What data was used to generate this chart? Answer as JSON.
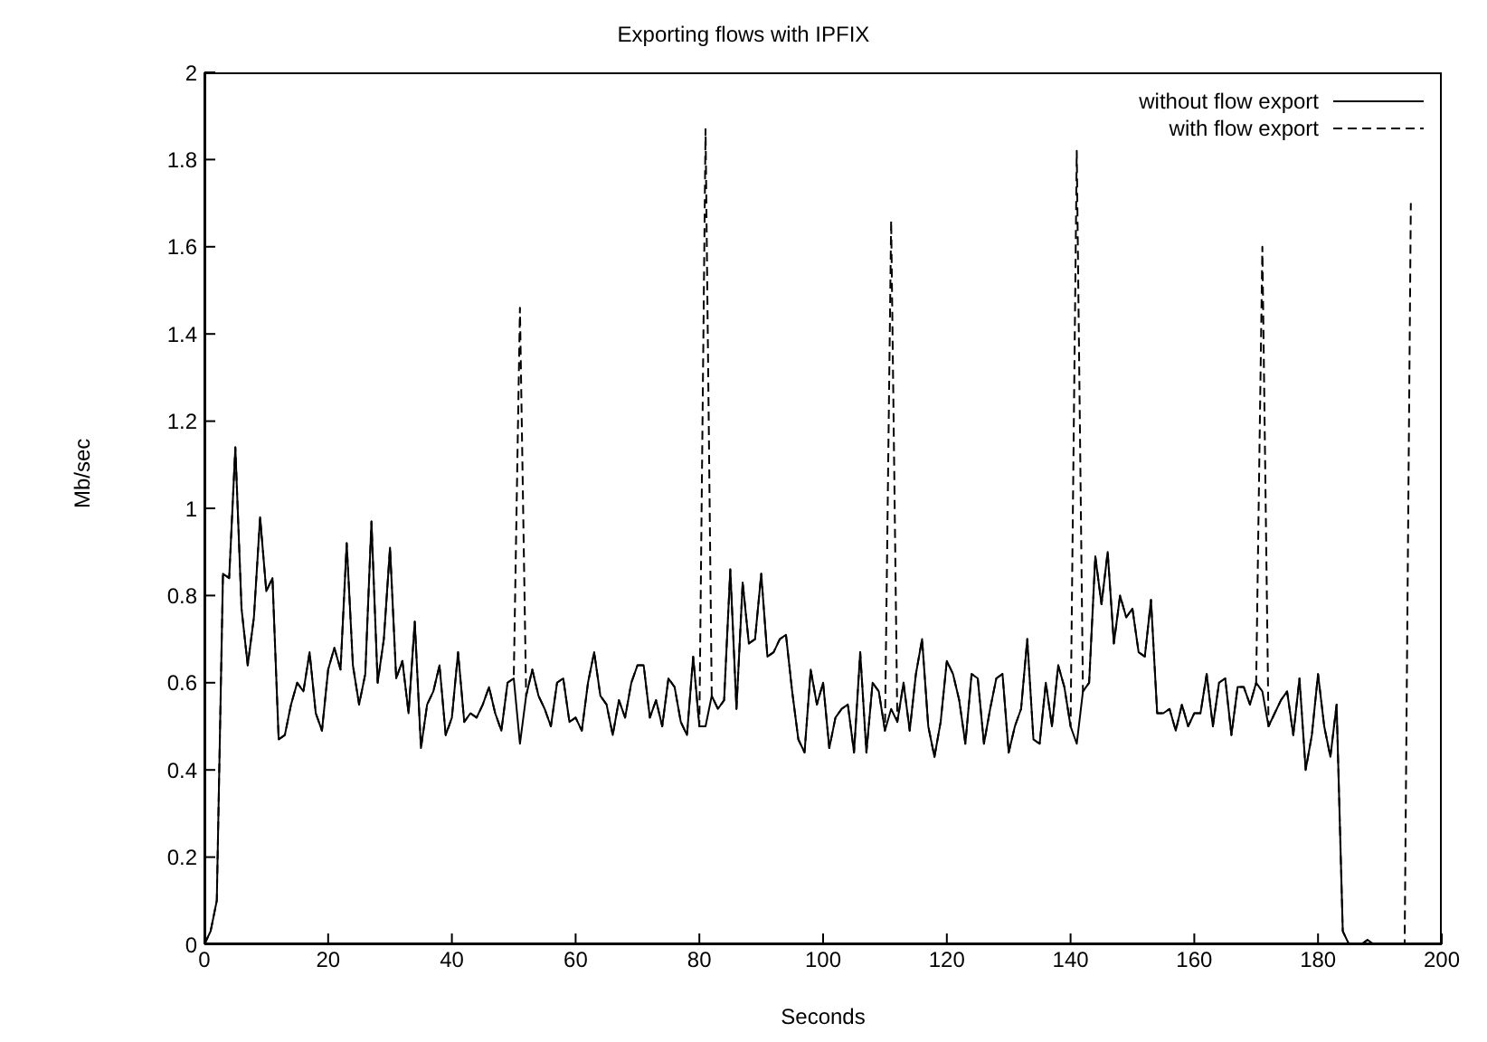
{
  "chart_data": {
    "type": "line",
    "title": "Exporting flows with IPFIX",
    "xlabel": "Seconds",
    "ylabel": "Mb/sec",
    "x": [
      0,
      1,
      2,
      3,
      4,
      5,
      6,
      7,
      8,
      9,
      10,
      11,
      12,
      13,
      14,
      15,
      16,
      17,
      18,
      19,
      20,
      21,
      22,
      23,
      24,
      25,
      26,
      27,
      28,
      29,
      30,
      31,
      32,
      33,
      34,
      35,
      36,
      37,
      38,
      39,
      40,
      41,
      42,
      43,
      44,
      45,
      46,
      47,
      48,
      49,
      50,
      51,
      52,
      53,
      54,
      55,
      56,
      57,
      58,
      59,
      60,
      61,
      62,
      63,
      64,
      65,
      66,
      67,
      68,
      69,
      70,
      71,
      72,
      73,
      74,
      75,
      76,
      77,
      78,
      79,
      80,
      81,
      82,
      83,
      84,
      85,
      86,
      87,
      88,
      89,
      90,
      91,
      92,
      93,
      94,
      95,
      96,
      97,
      98,
      99,
      100,
      101,
      102,
      103,
      104,
      105,
      106,
      107,
      108,
      109,
      110,
      111,
      112,
      113,
      114,
      115,
      116,
      117,
      118,
      119,
      120,
      121,
      122,
      123,
      124,
      125,
      126,
      127,
      128,
      129,
      130,
      131,
      132,
      133,
      134,
      135,
      136,
      137,
      138,
      139,
      140,
      141,
      142,
      143,
      144,
      145,
      146,
      147,
      148,
      149,
      150,
      151,
      152,
      153,
      154,
      155,
      156,
      157,
      158,
      159,
      160,
      161,
      162,
      163,
      164,
      165,
      166,
      167,
      168,
      169,
      170,
      171,
      172,
      173,
      174,
      175,
      176,
      177,
      178,
      179,
      180,
      181,
      182,
      183,
      184,
      185,
      186,
      187,
      188,
      189,
      190,
      191,
      192,
      193,
      194,
      195
    ],
    "series": [
      {
        "name": "without flow export",
        "color": "#000000",
        "line_style": "solid",
        "values": [
          0.0,
          0.03,
          0.1,
          0.85,
          0.84,
          1.14,
          0.77,
          0.64,
          0.75,
          0.98,
          0.81,
          0.84,
          0.47,
          0.48,
          0.55,
          0.6,
          0.58,
          0.67,
          0.53,
          0.49,
          0.63,
          0.68,
          0.63,
          0.92,
          0.64,
          0.55,
          0.62,
          0.97,
          0.6,
          0.7,
          0.91,
          0.61,
          0.65,
          0.53,
          0.74,
          0.45,
          0.55,
          0.58,
          0.64,
          0.48,
          0.52,
          0.67,
          0.51,
          0.53,
          0.52,
          0.55,
          0.59,
          0.53,
          0.49,
          0.6,
          0.61,
          0.46,
          0.57,
          0.63,
          0.57,
          0.54,
          0.5,
          0.6,
          0.61,
          0.51,
          0.52,
          0.49,
          0.6,
          0.67,
          0.57,
          0.55,
          0.48,
          0.56,
          0.52,
          0.6,
          0.64,
          0.64,
          0.52,
          0.56,
          0.5,
          0.61,
          0.59,
          0.51,
          0.48,
          0.66,
          0.5,
          0.5,
          0.57,
          0.54,
          0.56,
          0.86,
          0.54,
          0.83,
          0.69,
          0.7,
          0.85,
          0.66,
          0.67,
          0.7,
          0.71,
          0.58,
          0.47,
          0.44,
          0.63,
          0.55,
          0.6,
          0.45,
          0.52,
          0.54,
          0.55,
          0.44,
          0.67,
          0.44,
          0.6,
          0.58,
          0.49,
          0.54,
          0.51,
          0.6,
          0.49,
          0.62,
          0.7,
          0.5,
          0.43,
          0.51,
          0.65,
          0.62,
          0.56,
          0.46,
          0.62,
          0.61,
          0.46,
          0.54,
          0.61,
          0.62,
          0.44,
          0.5,
          0.54,
          0.7,
          0.47,
          0.46,
          0.6,
          0.5,
          0.64,
          0.59,
          0.5,
          0.46,
          0.58,
          0.6,
          0.89,
          0.78,
          0.9,
          0.69,
          0.8,
          0.75,
          0.77,
          0.67,
          0.66,
          0.79,
          0.53,
          0.53,
          0.54,
          0.49,
          0.55,
          0.5,
          0.53,
          0.53,
          0.62,
          0.5,
          0.6,
          0.61,
          0.48,
          0.59,
          0.59,
          0.55,
          0.6,
          0.58,
          0.5,
          0.53,
          0.56,
          0.58,
          0.48,
          0.61,
          0.4,
          0.48,
          0.62,
          0.5,
          0.43,
          0.55,
          0.03,
          0.0,
          0.0,
          0.0,
          0.01,
          0.0,
          0.0,
          0.0,
          0.0,
          0.0,
          0.0,
          null
        ]
      },
      {
        "name": "with flow export",
        "color": "#000000",
        "line_style": "dashed",
        "values": [
          0.0,
          0.03,
          0.1,
          0.85,
          0.84,
          1.14,
          0.77,
          0.64,
          0.75,
          0.98,
          0.81,
          0.84,
          0.47,
          0.48,
          0.55,
          0.6,
          0.58,
          0.67,
          0.53,
          0.49,
          0.63,
          0.68,
          0.63,
          0.92,
          0.64,
          0.55,
          0.62,
          0.97,
          0.6,
          0.7,
          0.91,
          0.61,
          0.65,
          0.53,
          0.74,
          0.45,
          0.55,
          0.58,
          0.64,
          0.48,
          0.52,
          0.67,
          0.51,
          0.53,
          0.52,
          0.55,
          0.59,
          0.53,
          0.49,
          0.6,
          0.61,
          1.46,
          0.57,
          0.63,
          0.57,
          0.54,
          0.5,
          0.6,
          0.61,
          0.51,
          0.52,
          0.49,
          0.6,
          0.67,
          0.57,
          0.55,
          0.48,
          0.56,
          0.52,
          0.6,
          0.64,
          0.64,
          0.52,
          0.56,
          0.5,
          0.61,
          0.59,
          0.51,
          0.48,
          0.66,
          0.5,
          1.87,
          0.57,
          0.54,
          0.56,
          0.86,
          0.54,
          0.83,
          0.69,
          0.7,
          0.85,
          0.66,
          0.67,
          0.7,
          0.71,
          0.58,
          0.47,
          0.44,
          0.63,
          0.55,
          0.6,
          0.45,
          0.52,
          0.54,
          0.55,
          0.44,
          0.67,
          0.44,
          0.6,
          0.58,
          0.49,
          1.66,
          0.51,
          0.6,
          0.49,
          0.62,
          0.7,
          0.5,
          0.43,
          0.51,
          0.65,
          0.62,
          0.56,
          0.46,
          0.62,
          0.61,
          0.46,
          0.54,
          0.61,
          0.62,
          0.44,
          0.5,
          0.54,
          0.7,
          0.47,
          0.46,
          0.6,
          0.5,
          0.64,
          0.59,
          0.5,
          1.82,
          0.58,
          0.6,
          0.89,
          0.78,
          0.9,
          0.69,
          0.8,
          0.75,
          0.77,
          0.67,
          0.66,
          0.79,
          0.53,
          0.53,
          0.54,
          0.49,
          0.55,
          0.5,
          0.53,
          0.53,
          0.62,
          0.5,
          0.6,
          0.61,
          0.48,
          0.59,
          0.59,
          0.55,
          0.6,
          1.6,
          0.5,
          0.53,
          0.56,
          0.58,
          0.48,
          0.61,
          0.4,
          0.48,
          0.62,
          0.5,
          0.43,
          0.55,
          0.03,
          0.0,
          0.0,
          0.0,
          0.01,
          0.0,
          0.0,
          0.0,
          0.0,
          0.0,
          0.0,
          1.7
        ]
      }
    ],
    "xlim": [
      0,
      200
    ],
    "xticks": [
      0,
      20,
      40,
      60,
      80,
      100,
      120,
      140,
      160,
      180,
      200
    ],
    "ylim": [
      0,
      2
    ],
    "yticks": [
      0,
      0.2,
      0.4,
      0.6,
      0.8,
      1,
      1.2,
      1.4,
      1.6,
      1.8,
      2
    ],
    "grid": false,
    "legend": "top right",
    "marker": "none"
  }
}
